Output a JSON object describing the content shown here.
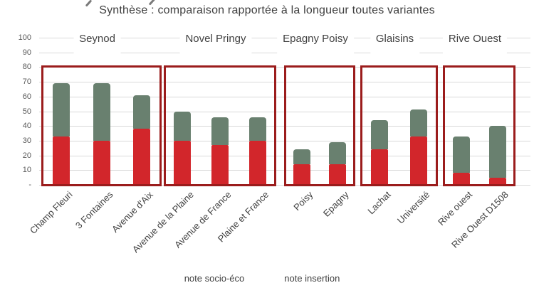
{
  "title": "Synthèse : comparaison rapportée à la longueur toutes variantes",
  "colors": {
    "socio": "#d2262b",
    "insertion": "#69806f",
    "group_box_border": "#9b1c1c",
    "gridline": "#d9d9d9",
    "tick_text": "#595959",
    "label_text": "#3f3f3f"
  },
  "chart_data": {
    "type": "bar",
    "stacked": true,
    "title": "Synthèse : comparaison rapportée à la longueur toutes variantes",
    "categories": [
      "Champ Fleuri",
      "3 Fontaines",
      "Avenue d'Aix",
      "Avenue de la Plaine",
      "Avenue de France",
      "Plaine et France",
      "Poisy",
      "Epagny",
      "Lachat",
      "Université",
      "Rive ouest",
      "Rive Ouest D1508"
    ],
    "series": [
      {
        "name": "note socio-éco",
        "color": "#d2262b",
        "values": [
          33,
          30,
          38,
          30,
          27,
          30,
          14,
          14,
          24,
          33,
          8,
          5
        ]
      },
      {
        "name": "note insertion",
        "color": "#69806f",
        "values": [
          36,
          39,
          23,
          20,
          19,
          16,
          10,
          15,
          20,
          18,
          25,
          35
        ]
      }
    ],
    "groups": [
      {
        "label": "Seynod",
        "count": 3
      },
      {
        "label": "Novel Pringy",
        "count": 3
      },
      {
        "label": "Epagny Poisy",
        "count": 2
      },
      {
        "label": "Glaisins",
        "count": 2
      },
      {
        "label": "Rive Ouest",
        "count": 2
      }
    ],
    "y_axis": {
      "min": 0,
      "max": 100,
      "tick_labels": [
        "100",
        "90",
        "80",
        "70",
        "60",
        "50",
        "40",
        "30",
        "20",
        "10",
        "-"
      ],
      "tick_values": [
        100,
        90,
        80,
        70,
        60,
        50,
        40,
        30,
        20,
        10,
        0
      ]
    },
    "legend_position": "bottom",
    "grid": true,
    "group_highlight_boxes": {
      "value_top": 81,
      "border_color": "#9b1c1c"
    }
  },
  "legend": {
    "items": [
      {
        "label": "note socio-éco",
        "color": "#d2262b"
      },
      {
        "label": "note insertion",
        "color": "#69806f"
      }
    ]
  }
}
